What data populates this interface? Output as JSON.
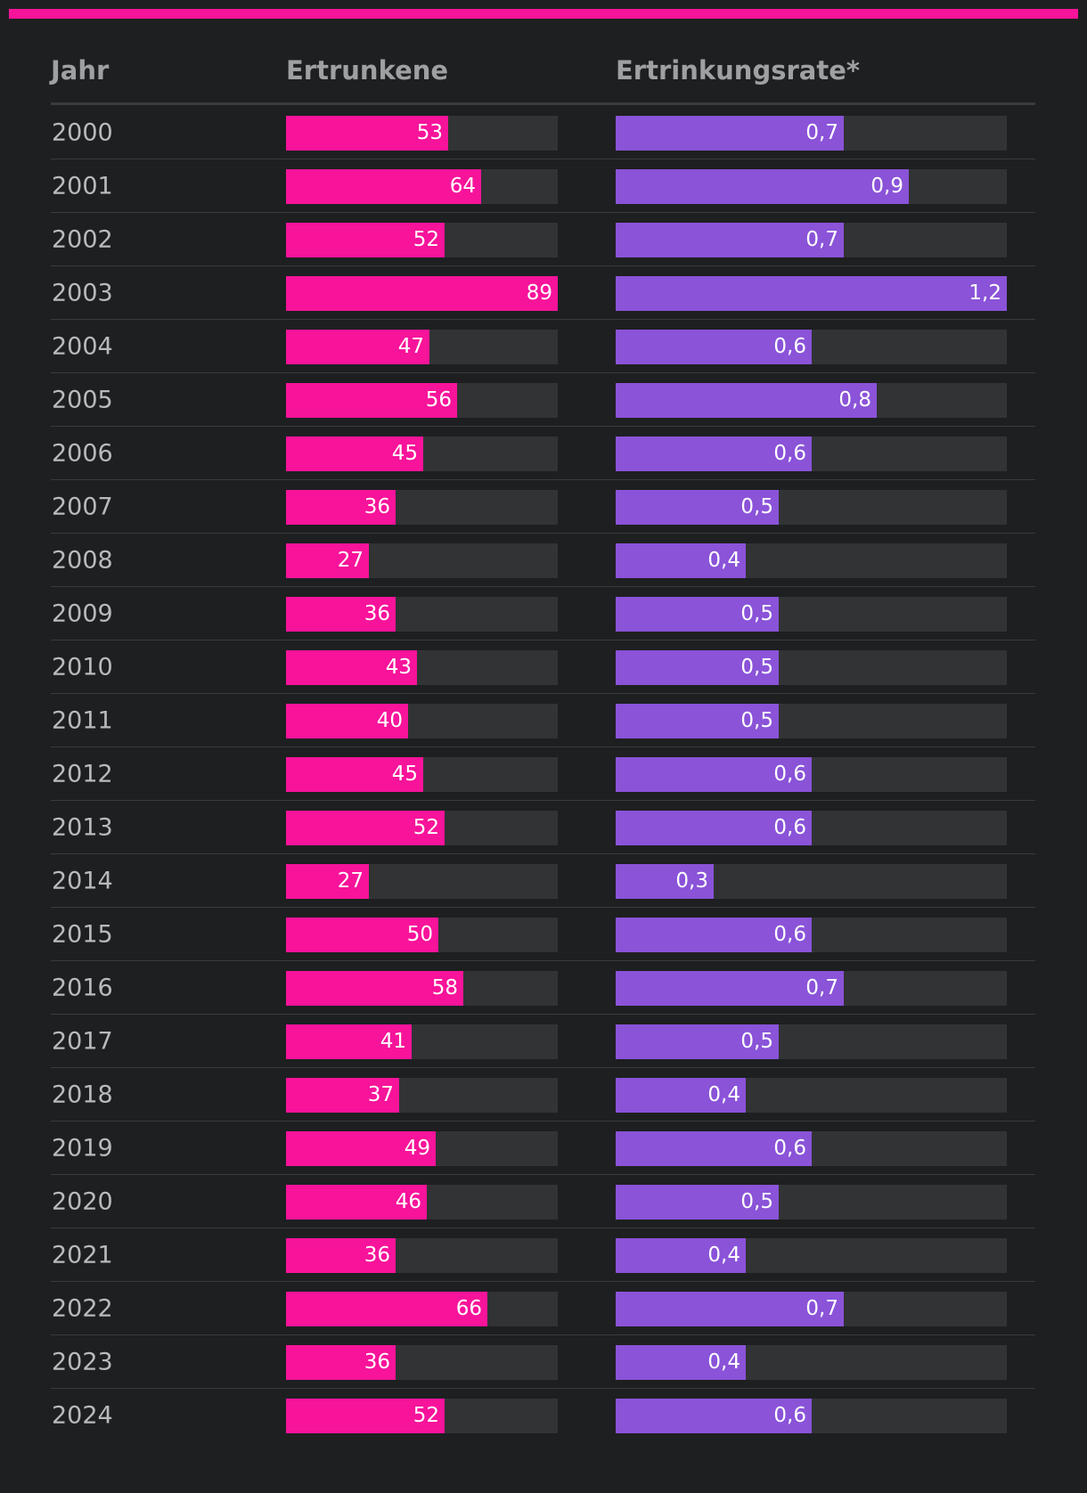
{
  "colors": {
    "background": "#1e1f21",
    "accent": "#f7139a",
    "bar_count": "#f7139a",
    "bar_rate": "#8a53d8",
    "track": "#323335",
    "divider": "#3a3b3d"
  },
  "chart_data": {
    "type": "bar",
    "orientation": "horizontal",
    "columns": [
      "Jahr",
      "Ertrunkene",
      "Ertrinkungsrate*"
    ],
    "categories": [
      "2000",
      "2001",
      "2002",
      "2003",
      "2004",
      "2005",
      "2006",
      "2007",
      "2008",
      "2009",
      "2010",
      "2011",
      "2012",
      "2013",
      "2014",
      "2015",
      "2016",
      "2017",
      "2018",
      "2019",
      "2020",
      "2021",
      "2022",
      "2023",
      "2024"
    ],
    "series": [
      {
        "name": "Ertrunkene",
        "max": 89,
        "values": [
          53,
          64,
          52,
          89,
          47,
          56,
          45,
          36,
          27,
          36,
          43,
          40,
          45,
          52,
          27,
          50,
          58,
          41,
          37,
          49,
          46,
          36,
          66,
          36,
          52
        ],
        "labels": [
          "53",
          "64",
          "52",
          "89",
          "47",
          "56",
          "45",
          "36",
          "27",
          "36",
          "43",
          "40",
          "45",
          "52",
          "27",
          "50",
          "58",
          "41",
          "37",
          "49",
          "46",
          "36",
          "66",
          "36",
          "52"
        ]
      },
      {
        "name": "Ertrinkungsrate*",
        "max": 1.2,
        "values": [
          0.7,
          0.9,
          0.7,
          1.2,
          0.6,
          0.8,
          0.6,
          0.5,
          0.4,
          0.5,
          0.5,
          0.5,
          0.6,
          0.6,
          0.3,
          0.6,
          0.7,
          0.5,
          0.4,
          0.6,
          0.5,
          0.4,
          0.7,
          0.4,
          0.6
        ],
        "labels": [
          "0,7",
          "0,9",
          "0,7",
          "1,2",
          "0,6",
          "0,8",
          "0,6",
          "0,5",
          "0,4",
          "0,5",
          "0,5",
          "0,5",
          "0,6",
          "0,6",
          "0,3",
          "0,6",
          "0,7",
          "0,5",
          "0,4",
          "0,6",
          "0,5",
          "0,4",
          "0,7",
          "0,4",
          "0,6"
        ]
      }
    ]
  }
}
